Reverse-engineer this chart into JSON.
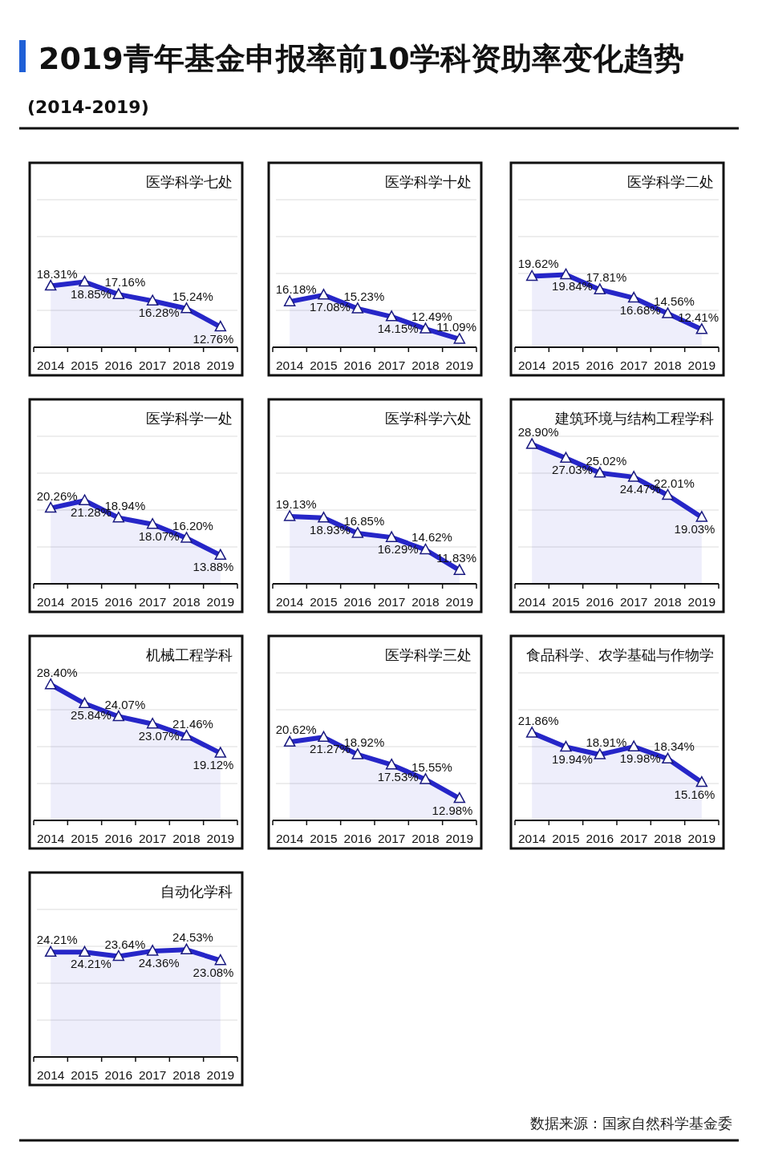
{
  "chart_data": [
    {
      "type": "other",
      "title": "2019青年基金申报率前10学科资助率变化趋势",
      "subtitle": "(2014-2019)",
      "annotations": [
        "数据来源：国家自然科学基金委"
      ]
    },
    {
      "type": "area",
      "title": "医学科学七处",
      "categories": [
        "2014",
        "2015",
        "2016",
        "2017",
        "2018",
        "2019"
      ],
      "values": [
        18.31,
        18.85,
        17.16,
        16.28,
        15.24,
        12.76
      ],
      "value_labels": [
        "18.31%",
        "18.85%",
        "17.16%",
        "16.28%",
        "15.24%",
        "12.76%"
      ],
      "color": "#2626c8",
      "ylim": [
        10,
        35
      ],
      "yticks": [
        {
          "value": 15,
          "label": null
        },
        {
          "value": 20,
          "label": null
        },
        {
          "value": 25,
          "label": null
        },
        {
          "value": 30,
          "label": null
        }
      ],
      "grid": "y",
      "marker": "triangle",
      "tick_labels": "x"
    },
    {
      "type": "area",
      "title": "医学科学十处",
      "categories": [
        "2014",
        "2015",
        "2016",
        "2017",
        "2018",
        "2019"
      ],
      "values": [
        16.18,
        17.08,
        15.23,
        14.15,
        12.49,
        11.09
      ],
      "value_labels": [
        "16.18%",
        "17.08%",
        "15.23%",
        "14.15%",
        "12.49%",
        "11.09%"
      ],
      "color": "#2626c8",
      "ylim": [
        10,
        35
      ],
      "yticks": [
        {
          "value": 15,
          "label": null
        },
        {
          "value": 20,
          "label": null
        },
        {
          "value": 25,
          "label": null
        },
        {
          "value": 30,
          "label": null
        }
      ],
      "grid": "y",
      "marker": "triangle",
      "tick_labels": "x"
    },
    {
      "type": "area",
      "title": "医学科学二处",
      "categories": [
        "2014",
        "2015",
        "2016",
        "2017",
        "2018",
        "2019"
      ],
      "values": [
        19.62,
        19.84,
        17.81,
        16.68,
        14.56,
        12.41
      ],
      "value_labels": [
        "19.62%",
        "19.84%",
        "17.81%",
        "16.68%",
        "14.56%",
        "12.41%"
      ],
      "color": "#2626c8",
      "ylim": [
        10,
        35
      ],
      "yticks": [
        {
          "value": 15,
          "label": null
        },
        {
          "value": 20,
          "label": null
        },
        {
          "value": 25,
          "label": null
        },
        {
          "value": 30,
          "label": null
        }
      ],
      "grid": "y",
      "marker": "triangle",
      "tick_labels": "x"
    },
    {
      "type": "area",
      "title": "医学科学一处",
      "categories": [
        "2014",
        "2015",
        "2016",
        "2017",
        "2018",
        "2019"
      ],
      "values": [
        20.26,
        21.28,
        18.94,
        18.07,
        16.2,
        13.88
      ],
      "value_labels": [
        "20.26%",
        "21.28%",
        "18.94%",
        "18.07%",
        "16.20%",
        "13.88%"
      ],
      "color": "#2626c8",
      "ylim": [
        10,
        35
      ],
      "yticks": [
        {
          "value": 15,
          "label": null
        },
        {
          "value": 20,
          "label": null
        },
        {
          "value": 25,
          "label": null
        },
        {
          "value": 30,
          "label": null
        }
      ],
      "grid": "y",
      "marker": "triangle",
      "tick_labels": "x"
    },
    {
      "type": "area",
      "title": "医学科学六处",
      "categories": [
        "2014",
        "2015",
        "2016",
        "2017",
        "2018",
        "2019"
      ],
      "values": [
        19.13,
        18.93,
        16.85,
        16.29,
        14.62,
        11.83
      ],
      "value_labels": [
        "19.13%",
        "18.93%",
        "16.85%",
        "16.29%",
        "14.62%",
        "11.83%"
      ],
      "color": "#2626c8",
      "ylim": [
        10,
        35
      ],
      "yticks": [
        {
          "value": 15,
          "label": null
        },
        {
          "value": 20,
          "label": null
        },
        {
          "value": 25,
          "label": null
        },
        {
          "value": 30,
          "label": null
        }
      ],
      "grid": "y",
      "marker": "triangle",
      "tick_labels": "x"
    },
    {
      "type": "area",
      "title": "建筑环境与结构工程学科",
      "categories": [
        "2014",
        "2015",
        "2016",
        "2017",
        "2018",
        "2019"
      ],
      "values": [
        28.9,
        27.03,
        25.02,
        24.47,
        22.01,
        19.03
      ],
      "value_labels": [
        "28.90%",
        "27.03%",
        "25.02%",
        "24.47%",
        "22.01%",
        "19.03%"
      ],
      "color": "#2626c8",
      "ylim": [
        10,
        35
      ],
      "yticks": [
        {
          "value": 15,
          "label": null
        },
        {
          "value": 20,
          "label": null
        },
        {
          "value": 25,
          "label": null
        },
        {
          "value": 30,
          "label": null
        }
      ],
      "grid": "y",
      "marker": "triangle",
      "tick_labels": "x"
    },
    {
      "type": "area",
      "title": "机械工程学科",
      "categories": [
        "2014",
        "2015",
        "2016",
        "2017",
        "2018",
        "2019"
      ],
      "values": [
        28.4,
        25.84,
        24.07,
        23.07,
        21.46,
        19.12
      ],
      "value_labels": [
        "28.40%",
        "25.84%",
        "24.07%",
        "23.07%",
        "21.46%",
        "19.12%"
      ],
      "color": "#2626c8",
      "ylim": [
        10,
        35
      ],
      "yticks": [
        {
          "value": 15,
          "label": null
        },
        {
          "value": 20,
          "label": null
        },
        {
          "value": 25,
          "label": null
        },
        {
          "value": 30,
          "label": null
        }
      ],
      "grid": "y",
      "marker": "triangle",
      "tick_labels": "x"
    },
    {
      "type": "area",
      "title": "医学科学三处",
      "categories": [
        "2014",
        "2015",
        "2016",
        "2017",
        "2018",
        "2019"
      ],
      "values": [
        20.62,
        21.27,
        18.92,
        17.53,
        15.55,
        12.98
      ],
      "value_labels": [
        "20.62%",
        "21.27%",
        "18.92%",
        "17.53%",
        "15.55%",
        "12.98%"
      ],
      "color": "#2626c8",
      "ylim": [
        10,
        35
      ],
      "yticks": [
        {
          "value": 15,
          "label": null
        },
        {
          "value": 20,
          "label": null
        },
        {
          "value": 25,
          "label": null
        },
        {
          "value": 30,
          "label": null
        }
      ],
      "grid": "y",
      "marker": "triangle",
      "tick_labels": "x"
    },
    {
      "type": "area",
      "title": "食品科学、农学基础与作物学",
      "categories": [
        "2014",
        "2015",
        "2016",
        "2017",
        "2018",
        "2019"
      ],
      "values": [
        21.86,
        19.94,
        18.91,
        19.98,
        18.34,
        15.16
      ],
      "value_labels": [
        "21.86%",
        "19.94%",
        "18.91%",
        "19.98%",
        "18.34%",
        "15.16%"
      ],
      "color": "#2626c8",
      "ylim": [
        10,
        35
      ],
      "yticks": [
        {
          "value": 15,
          "label": null
        },
        {
          "value": 20,
          "label": null
        },
        {
          "value": 25,
          "label": null
        },
        {
          "value": 30,
          "label": null
        }
      ],
      "grid": "y",
      "marker": "triangle",
      "tick_labels": "x"
    },
    {
      "type": "area",
      "title": "自动化学科",
      "categories": [
        "2014",
        "2015",
        "2016",
        "2017",
        "2018",
        "2019"
      ],
      "values": [
        24.21,
        24.21,
        23.64,
        24.36,
        24.53,
        23.08
      ],
      "value_labels": [
        "24.21%",
        "24.21%",
        "23.64%",
        "24.36%",
        "24.53%",
        "23.08%"
      ],
      "color": "#2626c8",
      "ylim": [
        10,
        35
      ],
      "yticks": [
        {
          "value": 15,
          "label": null
        },
        {
          "value": 20,
          "label": null
        },
        {
          "value": 25,
          "label": null
        },
        {
          "value": 30,
          "label": null
        }
      ],
      "grid": "y",
      "marker": "triangle",
      "tick_labels": "x"
    }
  ]
}
